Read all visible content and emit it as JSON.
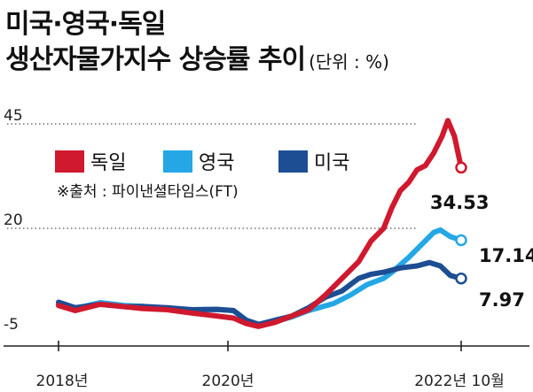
{
  "title_line1": "미국·영국·독일",
  "title_line2": "생산자물가지수 상승률 추이",
  "unit": "(단위 : %)",
  "source": "※출처 : 파이낸셜타임스(FT)",
  "chart_data": {
    "type": "line",
    "ylim": [
      -5,
      50
    ],
    "yticks": [
      "45",
      "20",
      "-5"
    ],
    "xticks": [
      "2018년",
      "2020년",
      "2022년 10월"
    ],
    "legend_position": "top-left",
    "series": [
      {
        "name": "독일",
        "color": "#d0192e",
        "end_label": "34.53",
        "points": [
          [
            2018.0,
            1.5
          ],
          [
            2018.2,
            0.3
          ],
          [
            2018.5,
            1.8
          ],
          [
            2018.8,
            1.2
          ],
          [
            2019.0,
            0.8
          ],
          [
            2019.3,
            0.5
          ],
          [
            2019.6,
            -0.3
          ],
          [
            2019.9,
            -1.0
          ],
          [
            2020.1,
            -1.5
          ],
          [
            2020.25,
            -2.8
          ],
          [
            2020.4,
            -3.5
          ],
          [
            2020.6,
            -2.5
          ],
          [
            2020.8,
            -1.0
          ],
          [
            2021.0,
            0.5
          ],
          [
            2021.2,
            4.0
          ],
          [
            2021.4,
            8.0
          ],
          [
            2021.6,
            12.0
          ],
          [
            2021.75,
            17.0
          ],
          [
            2021.9,
            20.0
          ],
          [
            2022.0,
            25.0
          ],
          [
            2022.1,
            29.0
          ],
          [
            2022.2,
            31.0
          ],
          [
            2022.3,
            34.0
          ],
          [
            2022.4,
            35.0
          ],
          [
            2022.5,
            38.0
          ],
          [
            2022.6,
            42.0
          ],
          [
            2022.67,
            45.8
          ],
          [
            2022.75,
            42.0
          ],
          [
            2022.83,
            34.53
          ]
        ]
      },
      {
        "name": "영국",
        "color": "#25a7e6",
        "end_label": "17.14",
        "points": [
          [
            2018.0,
            1.8
          ],
          [
            2018.2,
            0.8
          ],
          [
            2018.5,
            2.2
          ],
          [
            2018.8,
            1.5
          ],
          [
            2019.0,
            1.3
          ],
          [
            2019.3,
            0.8
          ],
          [
            2019.6,
            0.5
          ],
          [
            2019.9,
            0.6
          ],
          [
            2020.1,
            0.3
          ],
          [
            2020.25,
            -2.0
          ],
          [
            2020.4,
            -3.0
          ],
          [
            2020.6,
            -2.3
          ],
          [
            2020.8,
            -1.2
          ],
          [
            2021.0,
            0.3
          ],
          [
            2021.3,
            2.0
          ],
          [
            2021.5,
            4.0
          ],
          [
            2021.7,
            6.5
          ],
          [
            2021.9,
            8.0
          ],
          [
            2022.0,
            9.5
          ],
          [
            2022.2,
            13.0
          ],
          [
            2022.35,
            16.0
          ],
          [
            2022.5,
            19.0
          ],
          [
            2022.58,
            19.6
          ],
          [
            2022.7,
            18.0
          ],
          [
            2022.83,
            17.14
          ]
        ]
      },
      {
        "name": "미국",
        "color": "#1d4e93",
        "end_label": "7.97",
        "points": [
          [
            2018.0,
            2.3
          ],
          [
            2018.2,
            1.0
          ],
          [
            2018.5,
            1.8
          ],
          [
            2018.8,
            1.2
          ],
          [
            2019.0,
            1.3
          ],
          [
            2019.3,
            1.0
          ],
          [
            2019.6,
            0.5
          ],
          [
            2019.9,
            0.6
          ],
          [
            2020.1,
            0.3
          ],
          [
            2020.25,
            -2.0
          ],
          [
            2020.4,
            -3.0
          ],
          [
            2020.6,
            -2.0
          ],
          [
            2020.8,
            -1.0
          ],
          [
            2021.0,
            1.0
          ],
          [
            2021.2,
            3.5
          ],
          [
            2021.4,
            5.0
          ],
          [
            2021.6,
            8.0
          ],
          [
            2021.75,
            9.0
          ],
          [
            2021.9,
            9.5
          ],
          [
            2022.1,
            10.5
          ],
          [
            2022.3,
            11.0
          ],
          [
            2022.45,
            11.8
          ],
          [
            2022.58,
            11.0
          ],
          [
            2022.7,
            8.7
          ],
          [
            2022.83,
            7.97
          ]
        ]
      }
    ]
  }
}
